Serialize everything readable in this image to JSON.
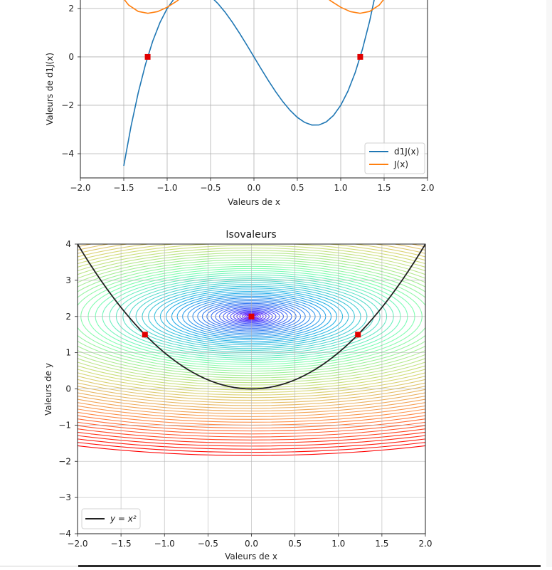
{
  "charts": {
    "top": {
      "chart_data": {
        "type": "line",
        "title": "",
        "xlabel": "Valeurs de x",
        "ylabel": "Valeurs de d1J(x)",
        "xlim": [
          -2.0,
          2.0
        ],
        "ylim": [
          -5,
          2.35
        ],
        "x_ticks": [
          -2.0,
          -1.5,
          -1.0,
          -0.5,
          0.0,
          0.5,
          1.0,
          1.5,
          2.0
        ],
        "x_tick_labels": [
          "−2.0",
          "−1.5",
          "−1.0",
          "−0.5",
          "0.0",
          "0.5",
          "1.0",
          "1.5",
          "2.0"
        ],
        "y_ticks": [
          -4,
          -2,
          0,
          2
        ],
        "y_tick_labels": [
          "−4",
          "−2",
          "0",
          "2"
        ],
        "grid": true,
        "legend_position": "lower-right",
        "series": [
          {
            "name": "d1J(x)",
            "color": "#1f77b4",
            "function": "d1J",
            "x_range": [
              -1.5,
              1.5
            ]
          },
          {
            "name": "J(x)",
            "color": "#ff7f0e",
            "function": "J",
            "x_range": [
              -2.0,
              2.0
            ]
          }
        ],
        "markers": [
          {
            "x": -1.2247,
            "y": 0,
            "color": "#e00000"
          },
          {
            "x": 1.2247,
            "y": 0,
            "color": "#e00000"
          }
        ]
      }
    },
    "bottom": {
      "chart_data": {
        "type": "contour",
        "title": "Isovaleurs",
        "xlabel": "Valeurs de x",
        "ylabel": "Valeurs de y",
        "xlim": [
          -2.0,
          2.0
        ],
        "ylim": [
          -4,
          4
        ],
        "x_ticks": [
          -2.0,
          -1.5,
          -1.0,
          -0.5,
          0.0,
          0.5,
          1.0,
          1.5,
          2.0
        ],
        "x_tick_labels": [
          "−2.0",
          "−1.5",
          "−1.0",
          "−0.5",
          "0.0",
          "0.5",
          "1.0",
          "1.5",
          "2.0"
        ],
        "y_ticks": [
          -4,
          -3,
          -2,
          -1,
          0,
          1,
          2,
          3,
          4
        ],
        "y_tick_labels": [
          "−4",
          "−3",
          "−2",
          "−1",
          "0",
          "1",
          "2",
          "3",
          "4"
        ],
        "grid": true,
        "colormap": "rainbow",
        "contour_center": {
          "x": 0,
          "y": 2
        },
        "curve": {
          "name": "y = x²",
          "color": "#222222"
        },
        "legend_position": "lower-left",
        "markers": [
          {
            "x": 0,
            "y": 2,
            "color": "#e00000"
          },
          {
            "x": -1.2247,
            "y": 1.5,
            "color": "#e00000"
          },
          {
            "x": 1.2247,
            "y": 1.5,
            "color": "#e00000"
          }
        ]
      }
    }
  }
}
